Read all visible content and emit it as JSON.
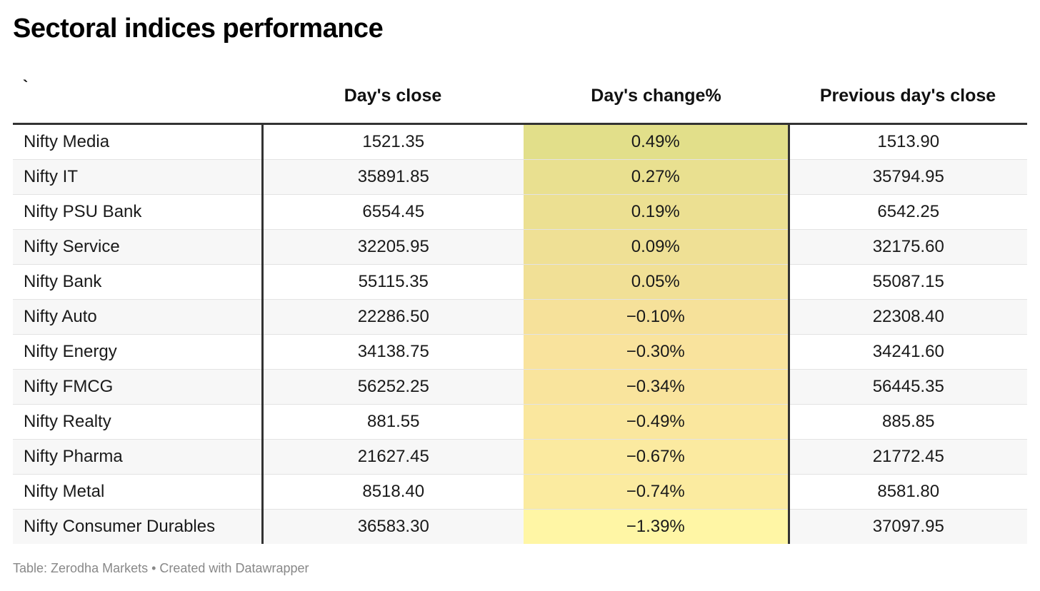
{
  "title": "Sectoral indices performance",
  "footer": "Table: Zerodha Markets • Created with Datawrapper",
  "chart_data": {
    "type": "table",
    "title": "Sectoral indices performance",
    "columns": [
      "`",
      "Day's close",
      "Day's change%",
      "Previous day's close"
    ],
    "rows": [
      {
        "name": "Nifty Media",
        "close": "1521.35",
        "change": "0.49%",
        "change_value": 0.49,
        "prev": "1513.90"
      },
      {
        "name": "Nifty IT",
        "close": "35891.85",
        "change": "0.27%",
        "change_value": 0.27,
        "prev": "35794.95"
      },
      {
        "name": "Nifty PSU Bank",
        "close": "6554.45",
        "change": "0.19%",
        "change_value": 0.19,
        "prev": "6542.25"
      },
      {
        "name": "Nifty Service",
        "close": "32205.95",
        "change": "0.09%",
        "change_value": 0.09,
        "prev": "32175.60"
      },
      {
        "name": "Nifty Bank",
        "close": "55115.35",
        "change": "0.05%",
        "change_value": 0.05,
        "prev": "55087.15"
      },
      {
        "name": "Nifty Auto",
        "close": "22286.50",
        "change": "−0.10%",
        "change_value": -0.1,
        "prev": "22308.40"
      },
      {
        "name": "Nifty Energy",
        "close": "34138.75",
        "change": "−0.30%",
        "change_value": -0.3,
        "prev": "34241.60"
      },
      {
        "name": "Nifty FMCG",
        "close": "56252.25",
        "change": "−0.34%",
        "change_value": -0.34,
        "prev": "56445.35"
      },
      {
        "name": "Nifty Realty",
        "close": "881.55",
        "change": "−0.49%",
        "change_value": -0.49,
        "prev": "885.85"
      },
      {
        "name": "Nifty Pharma",
        "close": "21627.45",
        "change": "−0.67%",
        "change_value": -0.67,
        "prev": "21772.45"
      },
      {
        "name": "Nifty Metal",
        "close": "8518.40",
        "change": "−0.74%",
        "change_value": -0.74,
        "prev": "8581.80"
      },
      {
        "name": "Nifty Consumer Durables",
        "close": "36583.30",
        "change": "−1.39%",
        "change_value": -1.39,
        "prev": "37097.95"
      }
    ],
    "heatmap_colors": {
      "high": "#e2df8a",
      "mid": "#f8e19c",
      "low": "#fff6a5"
    }
  }
}
